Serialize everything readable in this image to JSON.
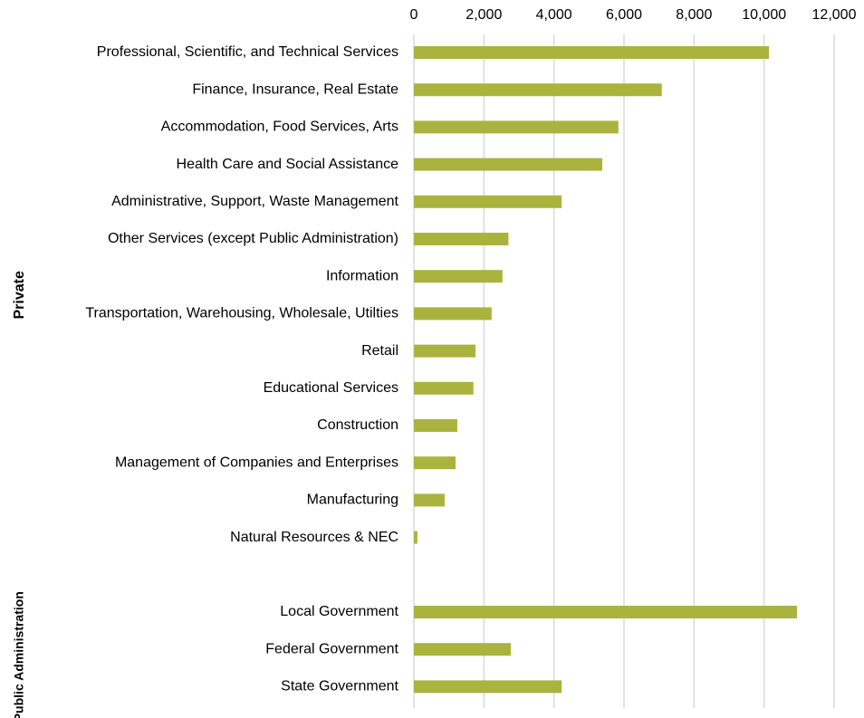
{
  "chart_data": {
    "type": "bar",
    "orientation": "horizontal",
    "color": "#abb33f",
    "grid": true,
    "xlim": [
      0,
      12000
    ],
    "xticks": [
      0,
      {
        "value": 2000,
        "label": "2,000"
      },
      {
        "value": 4000,
        "label": "4,000"
      },
      {
        "value": 6000,
        "label": "6,000"
      },
      {
        "value": 8000,
        "label": "8,000"
      },
      {
        "value": 10000,
        "label": "10,000"
      },
      {
        "value": 12000,
        "label": "12,000"
      }
    ],
    "groups": [
      {
        "name": "Private",
        "categories": [
          "Professional, Scientific, and Technical Services",
          "Finance, Insurance, Real Estate",
          "Accommodation, Food Services, Arts",
          "Health Care and Social Assistance",
          "Administrative, Support, Waste Management",
          "Other Services (except Public Administration)",
          "Information",
          "Transportation, Warehousing, Wholesale, Utilties",
          "Retail",
          "Educational Services",
          "Construction",
          "Management of Companies and Enterprises",
          "Manufacturing",
          "Natural Resources & NEC"
        ],
        "values": [
          10140,
          7080,
          5840,
          5380,
          4220,
          2700,
          2530,
          2220,
          1760,
          1700,
          1240,
          1190,
          880,
          100
        ]
      },
      {
        "name": "Public Administration",
        "categories": [
          "Local Government",
          "Federal Government",
          "State Government"
        ],
        "values": [
          10940,
          2770,
          4220
        ]
      }
    ]
  }
}
